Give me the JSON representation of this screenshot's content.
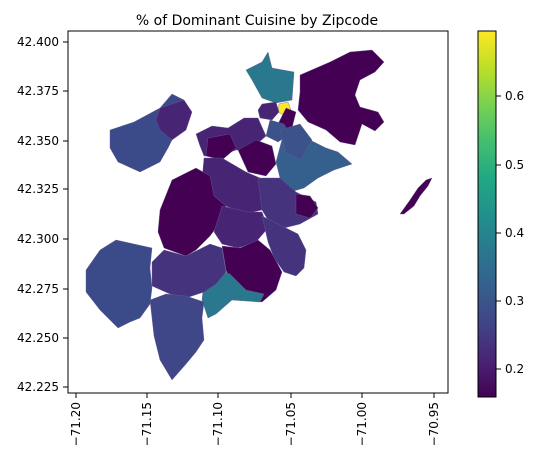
{
  "title": "% of Dominant Cuisine by Zipcode",
  "axes": {
    "x_ticks": [
      "−71.20",
      "−71.15",
      "−71.10",
      "−71.05",
      "−71.00",
      "−70.95"
    ],
    "y_ticks": [
      "42.225",
      "42.250",
      "42.275",
      "42.300",
      "42.325",
      "42.350",
      "42.375",
      "42.400"
    ]
  },
  "colorbar": {
    "colormap": "viridis",
    "range": [
      0.155,
      0.695
    ],
    "ticks": [
      "0.2",
      "0.3",
      "0.4",
      "0.5",
      "0.6"
    ]
  },
  "colors": {
    "viridis_low": "#440154",
    "viridis_high": "#fde725"
  }
}
